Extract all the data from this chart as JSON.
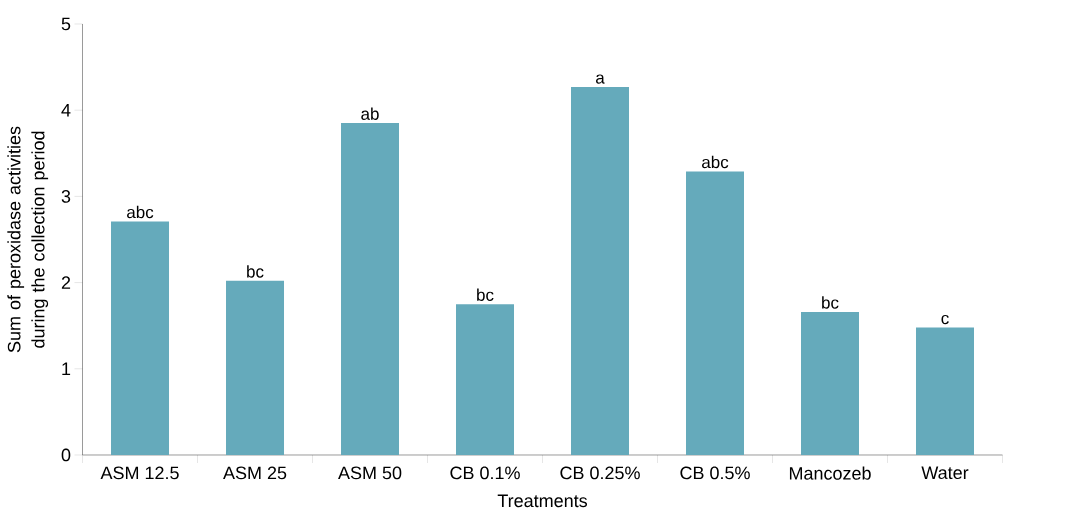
{
  "chart_data": {
    "type": "bar",
    "xlabel": "Treatments",
    "ylabel": "Sum of peroxidase activities during the collection period",
    "categories": [
      "ASM 12.5",
      "ASM 25",
      "ASM 50",
      "CB 0.1%",
      "CB 0.25%",
      "CB 0.5%",
      "Mancozeb",
      "Water"
    ],
    "values": [
      2.71,
      2.02,
      3.85,
      1.75,
      4.27,
      3.29,
      1.66,
      1.48
    ],
    "value_labels": [
      "abc",
      "bc",
      "ab",
      "bc",
      "a",
      "abc",
      "bc",
      "c"
    ],
    "color": "#65aabb",
    "ylim": [
      0,
      5
    ],
    "yticks": [
      0,
      1,
      2,
      3,
      4,
      5
    ]
  }
}
